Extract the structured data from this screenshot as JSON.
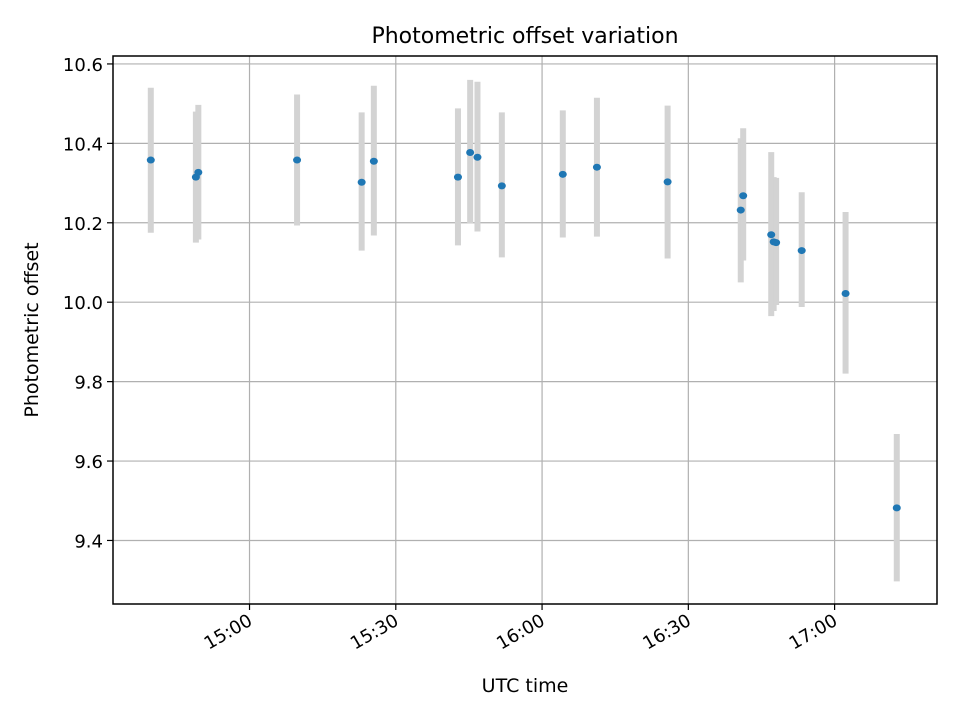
{
  "chart_data": {
    "type": "scatter",
    "title": "Photometric offset variation",
    "xlabel": "UTC time",
    "ylabel": "Photometric offset",
    "xlim": [
      "14:32",
      "17:21"
    ],
    "ylim": [
      9.24,
      10.62
    ],
    "xticks": [
      "15:00",
      "15:30",
      "16:00",
      "16:30",
      "17:00"
    ],
    "yticks": [
      "9.4",
      "9.6",
      "9.8",
      "10.0",
      "10.2",
      "10.4",
      "10.6"
    ],
    "grid": true,
    "points": [
      {
        "x": "14:39:45",
        "y": 10.358,
        "err": [
          10.175,
          10.54
        ]
      },
      {
        "x": "14:49:00",
        "y": 10.315,
        "err": [
          10.15,
          10.48
        ]
      },
      {
        "x": "14:49:30",
        "y": 10.327,
        "err": [
          10.158,
          10.497
        ]
      },
      {
        "x": "15:09:45",
        "y": 10.358,
        "err": [
          10.193,
          10.523
        ]
      },
      {
        "x": "15:23:00",
        "y": 10.302,
        "err": [
          10.13,
          10.478
        ]
      },
      {
        "x": "15:25:30",
        "y": 10.355,
        "err": [
          10.168,
          10.545
        ]
      },
      {
        "x": "15:42:45",
        "y": 10.315,
        "err": [
          10.143,
          10.488
        ]
      },
      {
        "x": "15:45:15",
        "y": 10.377,
        "err": [
          10.198,
          10.56
        ]
      },
      {
        "x": "15:46:45",
        "y": 10.365,
        "err": [
          10.178,
          10.555
        ]
      },
      {
        "x": "15:51:45",
        "y": 10.293,
        "err": [
          10.113,
          10.478
        ]
      },
      {
        "x": "16:04:15",
        "y": 10.322,
        "err": [
          10.163,
          10.483
        ]
      },
      {
        "x": "16:11:15",
        "y": 10.34,
        "err": [
          10.165,
          10.515
        ]
      },
      {
        "x": "16:25:45",
        "y": 10.303,
        "err": [
          10.11,
          10.495
        ]
      },
      {
        "x": "16:40:45",
        "y": 10.232,
        "err": [
          10.05,
          10.413
        ]
      },
      {
        "x": "16:41:15",
        "y": 10.268,
        "err": [
          10.105,
          10.438
        ]
      },
      {
        "x": "16:47:00",
        "y": 10.17,
        "err": [
          9.965,
          10.378
        ]
      },
      {
        "x": "16:47:30",
        "y": 10.152,
        "err": [
          9.978,
          10.315
        ]
      },
      {
        "x": "16:48:00",
        "y": 10.15,
        "err": [
          9.993,
          10.313
        ]
      },
      {
        "x": "16:53:15",
        "y": 10.13,
        "err": [
          9.988,
          10.277
        ]
      },
      {
        "x": "17:02:15",
        "y": 10.022,
        "err": [
          9.82,
          10.227
        ]
      },
      {
        "x": "17:12:45",
        "y": 9.482,
        "err": [
          9.297,
          9.668
        ]
      }
    ],
    "colors": {
      "point": "#1f77b4",
      "errorbar": "#d3d3d3",
      "grid": "#b0b0b0"
    }
  }
}
